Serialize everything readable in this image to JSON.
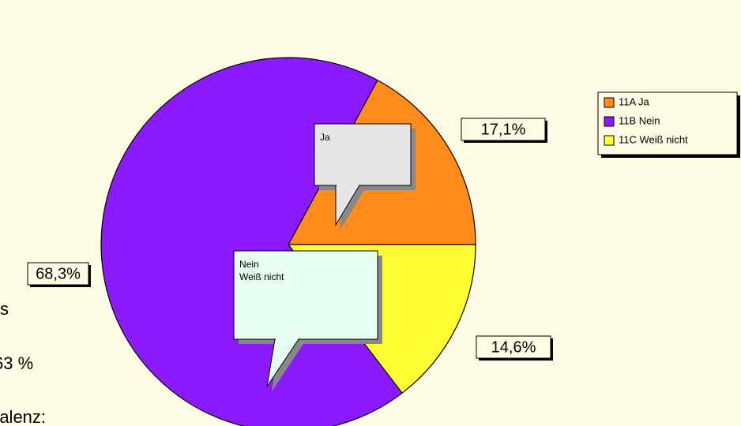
{
  "chart_data": {
    "type": "pie",
    "categories": [
      "11A Ja",
      "11B Nein",
      "11C Weiß nicht"
    ],
    "values": [
      17.1,
      68.3,
      14.6
    ],
    "value_labels": [
      "17,1%",
      "68,3%",
      "14,6%"
    ],
    "colors": [
      "#ff8c1a",
      "#8c1aff",
      "#ffff33"
    ],
    "annotations": [
      [
        "Ja"
      ],
      [
        "Nein",
        "Weiß nicht"
      ]
    ],
    "legend": "right"
  },
  "fragments": [
    "s",
    "63 %",
    "ralenz:"
  ]
}
